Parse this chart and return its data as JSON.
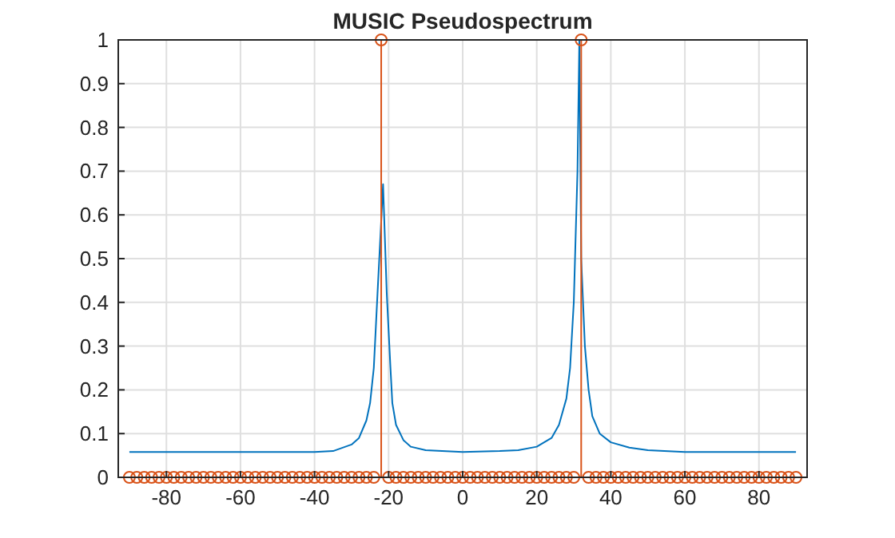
{
  "chart_data": {
    "type": "line",
    "title": "MUSIC Pseudospectrum",
    "xlim": [
      -93,
      93
    ],
    "ylim": [
      0,
      1
    ],
    "xticks": [
      -80,
      -60,
      -40,
      -20,
      0,
      20,
      40,
      60,
      80
    ],
    "yticks": [
      0,
      0.1,
      0.2,
      0.3,
      0.4,
      0.5,
      0.6,
      0.7,
      0.8,
      0.9,
      1
    ],
    "grid": true,
    "series": [
      {
        "color": "#0072bd",
        "marker": "none",
        "x": [
          -90,
          -60,
          -40,
          -35,
          -30,
          -28,
          -26,
          -25,
          -24,
          -23,
          -21.5,
          -20.5,
          -19.5,
          -19,
          -18,
          -16,
          -14,
          -10,
          0,
          10,
          15,
          20,
          24,
          26,
          28,
          29,
          30,
          31,
          31.5,
          32,
          33,
          34,
          35,
          37,
          40,
          45,
          50,
          60,
          90
        ],
        "values": [
          0.058,
          0.058,
          0.058,
          0.06,
          0.075,
          0.09,
          0.13,
          0.17,
          0.25,
          0.42,
          0.67,
          0.42,
          0.25,
          0.17,
          0.12,
          0.085,
          0.07,
          0.062,
          0.058,
          0.06,
          0.062,
          0.07,
          0.09,
          0.12,
          0.18,
          0.25,
          0.4,
          0.7,
          1,
          0.5,
          0.3,
          0.2,
          0.14,
          0.1,
          0.08,
          0.068,
          0.062,
          0.058,
          0.058
        ]
      },
      {
        "type": "lollipop",
        "color": "#d95319",
        "marker": "circle",
        "x": [
          -90,
          -88,
          -86,
          -84,
          -82,
          -80,
          -78,
          -76,
          -74,
          -72,
          -70,
          -68,
          -66,
          -64,
          -62,
          -60,
          -58,
          -56,
          -54,
          -52,
          -50,
          -48,
          -46,
          -44,
          -42,
          -40,
          -38,
          -36,
          -34,
          -32,
          -30,
          -28,
          -26,
          -24,
          -22,
          -20,
          -18,
          -16,
          -14,
          -12,
          -10,
          -8,
          -6,
          -4,
          -2,
          0,
          2,
          4,
          6,
          8,
          10,
          12,
          14,
          16,
          18,
          20,
          22,
          24,
          26,
          28,
          30,
          32,
          34,
          36,
          38,
          40,
          42,
          44,
          46,
          48,
          50,
          52,
          54,
          56,
          58,
          60,
          62,
          64,
          66,
          68,
          70,
          72,
          74,
          76,
          78,
          80,
          82,
          84,
          86,
          88,
          90
        ],
        "values": [
          0,
          0,
          0,
          0,
          0,
          0,
          0,
          0,
          0,
          0,
          0,
          0,
          0,
          0,
          0,
          0,
          0,
          0,
          0,
          0,
          0,
          0,
          0,
          0,
          0,
          0,
          0,
          0,
          0,
          0,
          0,
          0,
          0,
          0,
          1,
          0,
          0,
          0,
          0,
          0,
          0,
          0,
          0,
          0,
          0,
          0,
          0,
          0,
          0,
          0,
          0,
          0,
          0,
          0,
          0,
          0,
          0,
          0,
          0,
          0,
          0,
          1,
          0,
          0,
          0,
          0,
          0,
          0,
          0,
          0,
          0,
          0,
          0,
          0,
          0,
          0,
          0,
          0,
          0,
          0,
          0,
          0,
          0,
          0,
          0,
          0,
          0,
          0,
          0,
          0,
          0
        ]
      }
    ]
  }
}
